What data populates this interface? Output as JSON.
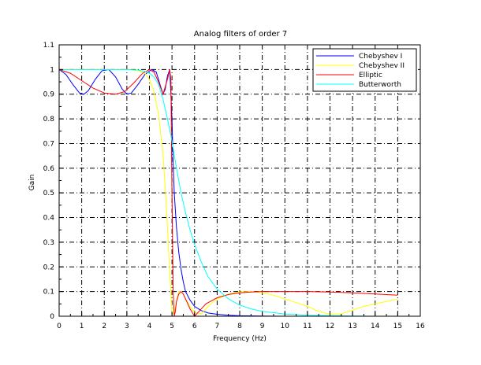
{
  "chart_data": {
    "type": "line",
    "title": "Analog filters of order 7",
    "xlabel": "Frequency (Hz)",
    "ylabel": "Gain",
    "xlim": [
      0,
      16
    ],
    "ylim": [
      0,
      1.1
    ],
    "x_ticks": [
      "0",
      "1",
      "2",
      "3",
      "4",
      "5",
      "6",
      "7",
      "8",
      "9",
      "10",
      "11",
      "12",
      "13",
      "14",
      "15",
      "16"
    ],
    "y_ticks": [
      "0",
      "0.1",
      "0.2",
      "0.3",
      "0.4",
      "0.5",
      "0.6",
      "0.7",
      "0.8",
      "0.9",
      "1",
      "1.1"
    ],
    "grid": true,
    "legend_position": "top-right",
    "series": [
      {
        "name": "Chebyshev I",
        "color": "#0000ff",
        "x": [
          0,
          0.3,
          0.6,
          0.9,
          1.1,
          1.3,
          1.6,
          1.9,
          2.2,
          2.5,
          2.8,
          3.0,
          3.2,
          3.5,
          3.8,
          4.1,
          4.3,
          4.5,
          4.6,
          4.7,
          4.8,
          4.9,
          5.0,
          5.05,
          5.1,
          5.2,
          5.3,
          5.4,
          5.5,
          5.6,
          5.8,
          6.0,
          6.3,
          6.6,
          7.0,
          7.5,
          8.0,
          9.0,
          10,
          12,
          15
        ],
        "y": [
          1,
          0.98,
          0.94,
          0.905,
          0.9,
          0.915,
          0.96,
          0.995,
          1,
          0.97,
          0.92,
          0.9,
          0.905,
          0.94,
          0.98,
          1,
          0.99,
          0.93,
          0.9,
          0.92,
          0.975,
          1,
          0.8,
          0.62,
          0.5,
          0.36,
          0.26,
          0.19,
          0.14,
          0.1,
          0.065,
          0.04,
          0.023,
          0.013,
          0.008,
          0.004,
          0.002,
          0.001,
          0,
          0,
          0
        ]
      },
      {
        "name": "Chebyshev II",
        "color": "#ffff00",
        "x": [
          0,
          1,
          2,
          3,
          3.5,
          3.8,
          4.0,
          4.2,
          4.4,
          4.6,
          4.7,
          4.8,
          4.85,
          4.9,
          4.95,
          5.0,
          5.1,
          5.2,
          5.3,
          5.4,
          5.5,
          5.6,
          5.8,
          6.0,
          6.3,
          6.6,
          7,
          7.5,
          8,
          8.5,
          9,
          9.5,
          10,
          10.5,
          11,
          11.5,
          12,
          12.5,
          13,
          13.5,
          14,
          14.5,
          15
        ],
        "y": [
          1,
          1,
          1,
          1,
          0.995,
          0.985,
          0.96,
          0.91,
          0.82,
          0.66,
          0.52,
          0.36,
          0.27,
          0.18,
          0.09,
          0.02,
          0.01,
          0.06,
          0.1,
          0.1,
          0.09,
          0.07,
          0.04,
          0.015,
          0.01,
          0.04,
          0.07,
          0.09,
          0.098,
          0.1,
          0.095,
          0.085,
          0.07,
          0.055,
          0.04,
          0.02,
          0.008,
          0.01,
          0.025,
          0.04,
          0.05,
          0.06,
          0.07
        ]
      },
      {
        "name": "Elliptic",
        "color": "#ff0000",
        "x": [
          0,
          0.5,
          1,
          1.5,
          2,
          2.5,
          2.9,
          3.3,
          3.7,
          4.0,
          4.2,
          4.4,
          4.6,
          4.8,
          4.9,
          4.95,
          5.0,
          5.05,
          5.1,
          5.15,
          5.2,
          5.3,
          5.4,
          5.5,
          5.6,
          5.8,
          6.0,
          6.2,
          6.5,
          7,
          7.5,
          8,
          8.5,
          9,
          10,
          11,
          12,
          13,
          14,
          15
        ],
        "y": [
          1,
          0.985,
          0.955,
          0.925,
          0.905,
          0.9,
          0.91,
          0.945,
          0.985,
          1,
          0.99,
          0.95,
          0.9,
          0.96,
          1,
          0.96,
          0.5,
          0.1,
          0,
          0.02,
          0.06,
          0.09,
          0.1,
          0.09,
          0.07,
          0.03,
          0,
          0.02,
          0.05,
          0.075,
          0.088,
          0.095,
          0.098,
          0.1,
          0.1,
          0.1,
          0.098,
          0.095,
          0.09,
          0.085
        ]
      },
      {
        "name": "Butterworth",
        "color": "#00ffff",
        "x": [
          0,
          1,
          2,
          3,
          3.5,
          3.8,
          4.0,
          4.2,
          4.4,
          4.6,
          4.8,
          5.0,
          5.2,
          5.4,
          5.6,
          5.8,
          6.0,
          6.3,
          6.6,
          7.0,
          7.5,
          8.0,
          8.5,
          9,
          10,
          11,
          12,
          13,
          14,
          15
        ],
        "y": [
          1,
          1,
          1,
          1,
          0.998,
          0.993,
          0.985,
          0.97,
          0.94,
          0.88,
          0.8,
          0.71,
          0.6,
          0.5,
          0.42,
          0.35,
          0.29,
          0.22,
          0.16,
          0.11,
          0.07,
          0.045,
          0.03,
          0.02,
          0.009,
          0.004,
          0.002,
          0.001,
          0,
          0
        ]
      }
    ]
  }
}
